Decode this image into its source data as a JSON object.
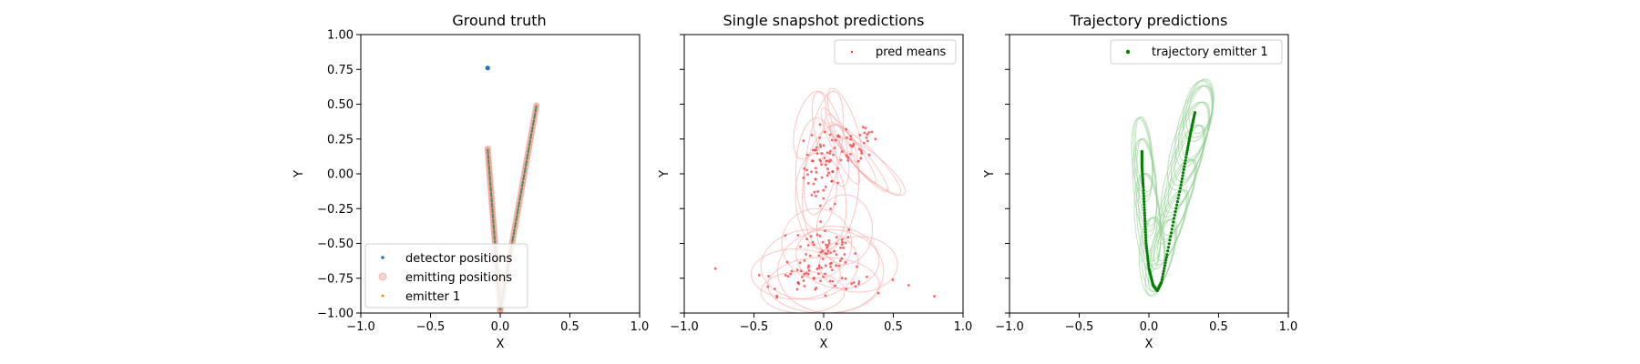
{
  "colors": {
    "detector": "#1f77b4",
    "detector_alt": "#2ca02c",
    "emitting_fill": "#f2b8b3",
    "emitter_dots": "#ff7f0e",
    "gt_line": "#2e8b57",
    "pred": "#ff3333",
    "pred_ellipse": "#ff9999",
    "trajectory": "#007f00",
    "trajectory_ellipse": "#8fd18f"
  },
  "chart_data": [
    {
      "type": "scatter",
      "title": "Ground truth",
      "xlabel": "X",
      "ylabel": "Y",
      "xlim": [
        -1.0,
        1.0
      ],
      "ylim": [
        -1.0,
        1.0
      ],
      "xticks": [
        "−1.0",
        "−0.5",
        "0.0",
        "0.5",
        "1.0"
      ],
      "yticks": [
        "1.00",
        "0.75",
        "0.50",
        "0.25",
        "0.00",
        "−0.25",
        "−0.50",
        "−0.75",
        "−1.00"
      ],
      "show_yticklabels": true,
      "legend": {
        "placement": "lower-left",
        "entries": [
          "detector positions",
          "emitting positions",
          "emitter 1"
        ]
      },
      "series": [
        {
          "name": "detector positions",
          "points": [
            [
              -0.09,
              0.76
            ]
          ]
        },
        {
          "name": "emitting positions",
          "segments": [
            [
              [
                -0.09,
                0.18
              ],
              [
                0.0,
                -0.98
              ]
            ],
            [
              [
                0.0,
                -0.98
              ],
              [
                0.26,
                0.49
              ]
            ]
          ]
        },
        {
          "name": "emitter 1",
          "segments": [
            [
              [
                -0.09,
                0.18
              ],
              [
                0.0,
                -0.98
              ]
            ],
            [
              [
                0.0,
                -0.98
              ],
              [
                0.26,
                0.49
              ]
            ]
          ]
        }
      ]
    },
    {
      "type": "scatter",
      "title": "Single snapshot predictions",
      "xlabel": "X",
      "ylabel": "Y",
      "xlim": [
        -1.0,
        1.0
      ],
      "ylim": [
        -1.0,
        1.0
      ],
      "xticks": [
        "−1.0",
        "−0.5",
        "0.0",
        "0.5",
        "1.0"
      ],
      "yticks": [],
      "show_yticklabels": false,
      "legend": {
        "placement": "upper-right",
        "entries": [
          "pred means"
        ]
      },
      "series": [
        {
          "name": "pred means",
          "clusters": [
            {
              "center": [
                0.0,
                0.05
              ],
              "spread": [
                0.07,
                0.15
              ],
              "count": 70
            },
            {
              "center": [
                0.2,
                0.17
              ],
              "spread": [
                0.06,
                0.06
              ],
              "count": 20
            },
            {
              "center": [
                0.33,
                0.27
              ],
              "spread": [
                0.04,
                0.03
              ],
              "count": 10
            },
            {
              "center": [
                0.0,
                -0.55
              ],
              "spread": [
                0.12,
                0.1
              ],
              "count": 60
            },
            {
              "center": [
                -0.15,
                -0.75
              ],
              "spread": [
                0.18,
                0.06
              ],
              "count": 35
            },
            {
              "center": [
                0.25,
                -0.78
              ],
              "spread": [
                0.2,
                0.05
              ],
              "count": 15
            }
          ],
          "uncertainty_ellipses": [
            {
              "center": [
                0.0,
                0.15
              ],
              "rx": 0.12,
              "ry": 0.45,
              "angle": -10
            },
            {
              "center": [
                0.05,
                0.25
              ],
              "rx": 0.1,
              "ry": 0.35,
              "angle": 15
            },
            {
              "center": [
                0.12,
                0.2
              ],
              "rx": 0.06,
              "ry": 0.3,
              "angle": 25
            },
            {
              "center": [
                0.2,
                0.18
              ],
              "rx": 0.05,
              "ry": 0.3,
              "angle": 35
            },
            {
              "center": [
                0.25,
                0.12
              ],
              "rx": 0.06,
              "ry": 0.32,
              "angle": 40
            },
            {
              "center": [
                0.3,
                0.1
              ],
              "rx": 0.08,
              "ry": 0.35,
              "angle": 45
            },
            {
              "center": [
                0.35,
                0.05
              ],
              "rx": 0.08,
              "ry": 0.3,
              "angle": 50
            },
            {
              "center": [
                -0.05,
                0.0
              ],
              "rx": 0.15,
              "ry": 0.4,
              "angle": 0
            },
            {
              "center": [
                -0.02,
                -0.2
              ],
              "rx": 0.18,
              "ry": 0.35,
              "angle": 5
            },
            {
              "center": [
                0.05,
                -0.1
              ],
              "rx": 0.2,
              "ry": 0.45,
              "angle": -5
            },
            {
              "center": [
                -0.1,
                0.35
              ],
              "rx": 0.1,
              "ry": 0.25,
              "angle": -15
            },
            {
              "center": [
                0.15,
                0.35
              ],
              "rx": 0.08,
              "ry": 0.28,
              "angle": 20
            },
            {
              "center": [
                -0.2,
                -0.72
              ],
              "rx": 0.32,
              "ry": 0.18,
              "angle": 0
            },
            {
              "center": [
                -0.1,
                -0.65
              ],
              "rx": 0.35,
              "ry": 0.25,
              "angle": 5
            },
            {
              "center": [
                0.05,
                -0.7
              ],
              "rx": 0.38,
              "ry": 0.3,
              "angle": 0
            },
            {
              "center": [
                0.1,
                -0.6
              ],
              "rx": 0.3,
              "ry": 0.22,
              "angle": -10
            },
            {
              "center": [
                0.25,
                -0.65
              ],
              "rx": 0.28,
              "ry": 0.2,
              "angle": 0
            },
            {
              "center": [
                -0.05,
                -0.5
              ],
              "rx": 0.25,
              "ry": 0.25,
              "angle": 0
            },
            {
              "center": [
                0.0,
                -0.8
              ],
              "rx": 0.4,
              "ry": 0.2,
              "angle": 0
            },
            {
              "center": [
                -0.15,
                -0.85
              ],
              "rx": 0.3,
              "ry": 0.15,
              "angle": 0
            },
            {
              "center": [
                0.15,
                -0.4
              ],
              "rx": 0.2,
              "ry": 0.25,
              "angle": 0
            }
          ]
        }
      ]
    },
    {
      "type": "line",
      "title": "Trajectory predictions",
      "xlabel": "X",
      "ylabel": "Y",
      "xlim": [
        -1.0,
        1.0
      ],
      "ylim": [
        -1.0,
        1.0
      ],
      "xticks": [
        "−1.0",
        "−0.5",
        "0.0",
        "0.5",
        "1.0"
      ],
      "yticks": [],
      "show_yticklabels": false,
      "legend": {
        "placement": "upper-right",
        "entries": [
          "trajectory emitter 1"
        ]
      },
      "series": [
        {
          "name": "trajectory emitter 1",
          "path": [
            [
              -0.05,
              0.16
            ],
            [
              -0.05,
              0.05
            ],
            [
              -0.04,
              -0.1
            ],
            [
              -0.03,
              -0.3
            ],
            [
              -0.02,
              -0.5
            ],
            [
              0.0,
              -0.68
            ],
            [
              0.03,
              -0.8
            ],
            [
              0.06,
              -0.84
            ],
            [
              0.09,
              -0.78
            ],
            [
              0.13,
              -0.58
            ],
            [
              0.18,
              -0.32
            ],
            [
              0.23,
              -0.08
            ],
            [
              0.27,
              0.14
            ],
            [
              0.3,
              0.3
            ],
            [
              0.33,
              0.44
            ]
          ],
          "uncertainty_ellipses": [
            {
              "center": [
                -0.05,
                0.1
              ],
              "rx": 0.07,
              "ry": 0.3,
              "angle": 5
            },
            {
              "center": [
                -0.03,
                -0.1
              ],
              "rx": 0.08,
              "ry": 0.35,
              "angle": 5
            },
            {
              "center": [
                -0.01,
                -0.35
              ],
              "rx": 0.09,
              "ry": 0.35,
              "angle": 5
            },
            {
              "center": [
                0.02,
                -0.6
              ],
              "rx": 0.09,
              "ry": 0.28,
              "angle": 0
            },
            {
              "center": [
                0.08,
                -0.6
              ],
              "rx": 0.08,
              "ry": 0.28,
              "angle": -15
            },
            {
              "center": [
                0.14,
                -0.4
              ],
              "rx": 0.08,
              "ry": 0.3,
              "angle": -20
            },
            {
              "center": [
                0.19,
                -0.2
              ],
              "rx": 0.09,
              "ry": 0.32,
              "angle": -20
            },
            {
              "center": [
                0.24,
                0.02
              ],
              "rx": 0.1,
              "ry": 0.35,
              "angle": -20
            },
            {
              "center": [
                0.28,
                0.2
              ],
              "rx": 0.11,
              "ry": 0.33,
              "angle": -18
            },
            {
              "center": [
                0.32,
                0.34
              ],
              "rx": 0.11,
              "ry": 0.3,
              "angle": -15
            },
            {
              "center": [
                0.35,
                0.45
              ],
              "rx": 0.1,
              "ry": 0.22,
              "angle": -10
            }
          ]
        }
      ]
    }
  ]
}
